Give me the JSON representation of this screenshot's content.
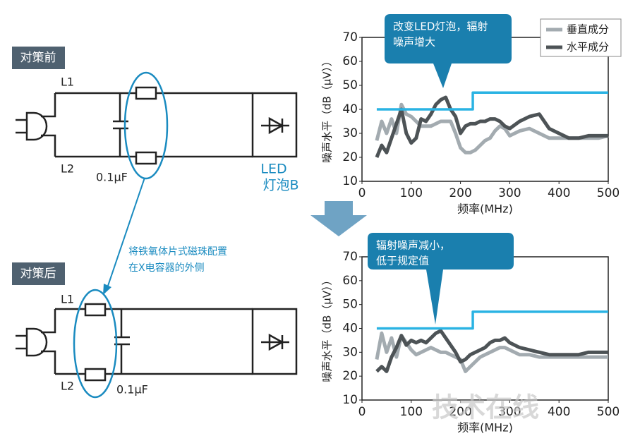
{
  "circuits": [
    {
      "label": "对策前",
      "l1": "L1",
      "l2": "L2",
      "cap": "0.1μF"
    },
    {
      "label": "对策后",
      "l1": "L1",
      "l2": "L2",
      "cap": "0.1μF"
    }
  ],
  "led": [
    "LED",
    "灯泡B"
  ],
  "note": [
    "将铁氧体片式磁珠配置",
    "在X电容器的外侧"
  ],
  "watermark": "技术在线",
  "chart_data": [
    {
      "type": "line",
      "ylabel": "噪声水平（dB（μV））",
      "xlabel": "频率(MHz)",
      "callout": [
        "改变LED灯泡，辐射",
        "噪声增大"
      ],
      "x": [
        30,
        40,
        50,
        60,
        70,
        80,
        90,
        100,
        110,
        120,
        130,
        140,
        150,
        160,
        170,
        180,
        190,
        200,
        210,
        220,
        230,
        240,
        250,
        260,
        270,
        280,
        290,
        300,
        320,
        340,
        360,
        380,
        400,
        420,
        440,
        460,
        480,
        500
      ],
      "series": [
        {
          "name": "垂直成分",
          "color": "#a3abb0",
          "values": [
            27,
            35,
            30,
            36,
            30,
            42,
            38,
            37,
            35,
            33,
            33,
            33,
            34,
            35,
            35,
            35,
            30,
            24,
            22,
            22,
            23,
            25,
            27,
            28,
            31,
            33,
            32,
            29,
            31,
            32,
            30,
            28,
            28,
            28,
            28,
            28,
            28,
            29
          ]
        },
        {
          "name": "水平成分",
          "color": "#4d5356",
          "values": [
            20,
            25,
            22,
            28,
            34,
            40,
            30,
            26,
            28,
            36,
            35,
            38,
            42,
            44,
            45,
            40,
            37,
            30,
            33,
            34,
            34,
            35,
            35,
            36,
            36,
            35,
            33,
            32,
            35,
            37,
            38,
            32,
            30,
            28,
            28,
            29,
            29,
            29
          ]
        }
      ],
      "limit": {
        "x": [
          30,
          225,
          225,
          500
        ],
        "values": [
          40,
          40,
          47,
          47
        ],
        "color": "#2ab3e3"
      },
      "xlim": [
        0,
        500
      ],
      "ylim": [
        10,
        70
      ],
      "xticks": [
        0,
        100,
        200,
        300,
        400,
        500
      ],
      "yticks": [
        10,
        20,
        30,
        40,
        50,
        60,
        70
      ],
      "legend": "upper right"
    },
    {
      "type": "line",
      "ylabel": "噪声水平（dB（μV））",
      "xlabel": "频率(MHz)",
      "callout": [
        "辐射噪声减小，",
        "低于规定值"
      ],
      "x": [
        30,
        40,
        50,
        60,
        70,
        80,
        90,
        100,
        110,
        120,
        130,
        140,
        150,
        160,
        170,
        180,
        190,
        200,
        210,
        220,
        230,
        240,
        250,
        260,
        270,
        280,
        290,
        300,
        320,
        340,
        360,
        380,
        400,
        420,
        440,
        460,
        480,
        500
      ],
      "series": [
        {
          "color": "#a3abb0",
          "values": [
            27,
            38,
            30,
            36,
            28,
            37,
            34,
            31,
            29,
            30,
            31,
            32,
            31,
            30,
            30,
            29,
            28,
            27,
            22,
            24,
            26,
            28,
            29,
            30,
            31,
            32,
            32,
            31,
            29,
            29,
            28,
            28,
            28,
            28,
            28,
            28,
            28,
            28
          ]
        },
        {
          "color": "#4d5356",
          "values": [
            22,
            24,
            22,
            28,
            32,
            37,
            33,
            35,
            34,
            35,
            34,
            36,
            38,
            39,
            36,
            33,
            30,
            26,
            27,
            29,
            30,
            31,
            32,
            34,
            35,
            35,
            36,
            34,
            32,
            31,
            30,
            29,
            29,
            29,
            29,
            30,
            30,
            30
          ]
        }
      ],
      "limit": {
        "x": [
          30,
          225,
          225,
          500
        ],
        "values": [
          40,
          40,
          47,
          47
        ],
        "color": "#2ab3e3"
      },
      "xlim": [
        0,
        500
      ],
      "ylim": [
        10,
        70
      ],
      "xticks": [
        0,
        100,
        200,
        300,
        400,
        500
      ],
      "yticks": [
        10,
        20,
        30,
        40,
        50,
        60,
        70
      ]
    }
  ]
}
